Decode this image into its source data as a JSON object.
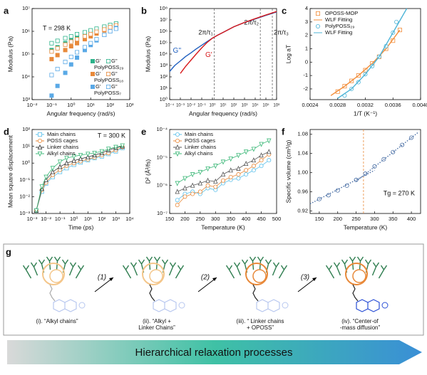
{
  "chart_data": [
    {
      "type": "scatter",
      "panel": "a",
      "xlabel": "Angular frequency (rad/s)",
      "ylabel": "Modulus (Pa)",
      "annotation": "T = 298 K",
      "annotation_corner": "upper left",
      "xlog": true,
      "ylog": true,
      "xlim": [
        0.01,
        1000
      ],
      "ylim": [
        1000,
        10000000
      ],
      "xticks": [
        {
          "value": 0.01,
          "label": "10⁻²"
        },
        {
          "value": 0.1,
          "label": "10⁻¹"
        },
        {
          "value": 1,
          "label": "10⁰"
        },
        {
          "value": 10,
          "label": "10¹"
        },
        {
          "value": 100,
          "label": "10²"
        },
        {
          "value": 1000,
          "label": "10³"
        }
      ],
      "yticks": [
        {
          "value": 1000,
          "label": "10³"
        },
        {
          "value": 10000,
          "label": "10⁴"
        },
        {
          "value": 100000,
          "label": "10⁵"
        },
        {
          "value": 1000000,
          "label": "10⁶"
        },
        {
          "value": 10000000,
          "label": "10⁷"
        }
      ],
      "legend": "lower right",
      "x": [
        0.1,
        0.2,
        0.5,
        1,
        2,
        5,
        10,
        20,
        50,
        100,
        200
      ],
      "groups": [
        {
          "name": "PolyPOSS₂₉",
          "series": [
            {
              "name": "G'",
              "color": "#2db38a",
              "marker": "square",
              "filled": true,
              "values": [
                150000,
                200000,
                300000,
                400000,
                550000,
                700000,
                900000,
                1100000,
                1400000,
                1700000,
                2000000
              ]
            },
            {
              "name": "G''",
              "color": "#2db38a",
              "marker": "square",
              "filled": false,
              "values": [
                300000,
                380000,
                500000,
                600000,
                750000,
                900000,
                1100000,
                1300000,
                1600000,
                1900000,
                2200000
              ]
            }
          ]
        },
        {
          "name": "PolyPOSS₁₈",
          "series": [
            {
              "name": "G'",
              "color": "#e8893a",
              "marker": "square",
              "filled": true,
              "values": [
                60000,
                90000,
                150000,
                220000,
                300000,
                450000,
                600000,
                800000,
                1100000,
                1400000,
                1700000
              ]
            },
            {
              "name": "G''",
              "color": "#e8893a",
              "marker": "square",
              "filled": false,
              "values": [
                130000,
                180000,
                260000,
                350000,
                450000,
                600000,
                750000,
                950000,
                1200000,
                1500000,
                1800000
              ]
            }
          ]
        },
        {
          "name": "PolyPOSS₇",
          "series": [
            {
              "name": "G'",
              "color": "#5aa9e6",
              "marker": "square",
              "filled": true,
              "values": [
                1500,
                4000,
                15000,
                35000,
                70000,
                150000,
                250000,
                400000,
                700000,
                1000000,
                1400000
              ]
            },
            {
              "name": "G''",
              "color": "#5aa9e6",
              "marker": "square",
              "filled": false,
              "values": [
                12000,
                22000,
                45000,
                75000,
                120000,
                200000,
                300000,
                450000,
                700000,
                1000000,
                1300000
              ]
            }
          ]
        }
      ]
    },
    {
      "type": "line",
      "panel": "b",
      "xlabel": "Angular frequency (rad/s)",
      "ylabel": "Modulus (Pa)",
      "xlog": true,
      "ylog": true,
      "xlim": [
        0.0001,
        1000000
      ],
      "ylim": [
        1,
        100000000
      ],
      "xticks": [
        {
          "value": 0.0001,
          "label": "10⁻⁴"
        },
        {
          "value": 0.001,
          "label": "10⁻³"
        },
        {
          "value": 0.01,
          "label": "10⁻²"
        },
        {
          "value": 0.1,
          "label": "10⁻¹"
        },
        {
          "value": 1,
          "label": "10⁰"
        },
        {
          "value": 10,
          "label": "10¹"
        },
        {
          "value": 100,
          "label": "10²"
        },
        {
          "value": 1000,
          "label": "10³"
        },
        {
          "value": 10000,
          "label": "10⁴"
        },
        {
          "value": 100000,
          "label": "10⁵"
        },
        {
          "value": 1000000,
          "label": "10⁶"
        }
      ],
      "yticks": [
        {
          "value": 1,
          "label": "10⁰"
        },
        {
          "value": 10,
          "label": "10¹"
        },
        {
          "value": 100,
          "label": "10²"
        },
        {
          "value": 1000,
          "label": "10³"
        },
        {
          "value": 10000,
          "label": "10⁴"
        },
        {
          "value": 100000,
          "label": "10⁵"
        },
        {
          "value": 1000000,
          "label": "10⁶"
        },
        {
          "value": 10000000,
          "label": "10⁷"
        },
        {
          "value": 100000000,
          "label": "10⁸"
        }
      ],
      "legend": "inline",
      "vlines": [
        {
          "value": 1.5,
          "label": "2π/τ₁"
        },
        {
          "value": 30000,
          "label": "2π/τ₂"
        },
        {
          "value": 400000,
          "label": "2π/τ₃"
        }
      ],
      "x": [
        0.0001,
        0.0003,
        0.001,
        0.003,
        0.01,
        0.03,
        0.1,
        0.3,
        1,
        3,
        10,
        100,
        1000,
        10000,
        100000,
        1000000
      ],
      "series": [
        {
          "name": "G''",
          "color": "#1f5fbf",
          "line": true,
          "values": [
            300,
            1000,
            2500,
            6000,
            13000,
            28000,
            60000,
            120000,
            250000,
            450000,
            800000,
            2500000,
            6000000,
            12000000,
            25000000,
            50000000
          ]
        },
        {
          "name": "G'",
          "color": "#d7191c",
          "line": true,
          "values": [
            null,
            null,
            200,
            800,
            3000,
            10000,
            35000,
            100000,
            250000,
            450000,
            800000,
            2500000,
            6000000,
            13000000,
            27000000,
            55000000
          ]
        }
      ]
    },
    {
      "type": "scatter",
      "panel": "c",
      "xlabel": "1/T (K⁻¹)",
      "ylabel": "Log aT",
      "xlim": [
        0.0024,
        0.004
      ],
      "ylim": [
        -2.8,
        4
      ],
      "xticks": [
        0.0024,
        0.0028,
        0.0032,
        0.0036,
        {
          "value": 0.004,
          "label": "0.0040"
        }
      ],
      "yticks": [
        -2,
        -1,
        0,
        1,
        2,
        3,
        4
      ],
      "legend": "upper left",
      "series": [
        {
          "name": "OPOSS-MOP",
          "color": "#f28c38",
          "marker": "square",
          "filled": false,
          "x": [
            0.0028,
            0.0029,
            0.003,
            0.0031,
            0.0032,
            0.0033,
            0.0034,
            0.0035,
            0.0036,
            0.0037
          ],
          "values": [
            -2.2,
            -1.8,
            -1.4,
            -1.0,
            -0.6,
            -0.1,
            0.4,
            1.0,
            1.6,
            2.4
          ]
        },
        {
          "name": "WLF Fitting",
          "color": "#f28c38",
          "line": true,
          "x": [
            0.0027,
            0.0029,
            0.0031,
            0.0033,
            0.0035,
            0.0037
          ],
          "values": [
            -2.5,
            -1.8,
            -1.0,
            -0.1,
            1.0,
            2.4
          ]
        },
        {
          "name": "PolyPOSS₂₉",
          "color": "#4db4d7",
          "marker": "circle",
          "filled": false,
          "x": [
            0.0029,
            0.003,
            0.0031,
            0.0032,
            0.0033,
            0.0034,
            0.0035,
            0.0036,
            0.00365
          ],
          "values": [
            -2.5,
            -2.0,
            -1.5,
            -0.9,
            -0.3,
            0.4,
            1.2,
            2.2,
            3.0
          ]
        },
        {
          "name": "WLF Fitting",
          "color": "#4db4d7",
          "line": true,
          "x": [
            0.0028,
            0.003,
            0.0032,
            0.0034,
            0.0036,
            0.0038
          ],
          "values": [
            -2.7,
            -2.0,
            -0.9,
            0.4,
            2.2,
            4.0
          ]
        }
      ]
    },
    {
      "type": "scatter",
      "panel": "d",
      "xlabel": "Time (ps)",
      "ylabel": "Mean square displacement",
      "annotation": "T = 300 K",
      "annotation_corner": "upper right",
      "xlog": true,
      "ylog": true,
      "xlim": [
        0.001,
        10000
      ],
      "ylim": [
        0.001,
        100
      ],
      "xticks": [
        {
          "value": 0.001,
          "label": "10⁻³"
        },
        {
          "value": 0.01,
          "label": "10⁻²"
        },
        {
          "value": 0.1,
          "label": "10⁻¹"
        },
        {
          "value": 1,
          "label": "10⁰"
        },
        {
          "value": 10,
          "label": "10¹"
        },
        {
          "value": 100,
          "label": "10²"
        },
        {
          "value": 1000,
          "label": "10³"
        },
        {
          "value": 10000,
          "label": "10⁴"
        }
      ],
      "yticks": [
        {
          "value": 0.001,
          "label": "10⁻³"
        },
        {
          "value": 0.01,
          "label": "10⁻²"
        },
        {
          "value": 0.1,
          "label": "10⁻¹"
        },
        {
          "value": 1,
          "label": "10⁰"
        },
        {
          "value": 10,
          "label": "10¹"
        },
        {
          "value": 100,
          "label": "10²"
        }
      ],
      "legend": "upper left",
      "x": [
        0.002,
        0.005,
        0.01,
        0.03,
        0.1,
        0.3,
        1,
        3,
        10,
        30,
        100,
        300,
        1000,
        3000
      ],
      "series": [
        {
          "name": "Main chains",
          "color": "#5bc0eb",
          "marker": "square",
          "filled": false,
          "line": true,
          "values": [
            0.0015,
            0.02,
            0.06,
            0.15,
            0.3,
            0.5,
            0.8,
            1.1,
            1.5,
            2,
            2.5,
            3.5,
            5,
            8
          ]
        },
        {
          "name": "POSS cages",
          "color": "#e8893a",
          "marker": "circle",
          "filled": false,
          "line": true,
          "values": [
            0.0015,
            0.025,
            0.07,
            0.2,
            0.4,
            0.7,
            1.0,
            1.3,
            1.7,
            2.2,
            3,
            4,
            6,
            9
          ]
        },
        {
          "name": "Linker chains",
          "color": "#333333",
          "marker": "triangle",
          "filled": false,
          "line": true,
          "values": [
            0.0015,
            0.03,
            0.1,
            0.3,
            0.6,
            1.0,
            1.4,
            1.8,
            2.3,
            3,
            4,
            6,
            8,
            10
          ]
        },
        {
          "name": "Alkyl chains",
          "color": "#3cb878",
          "marker": "triangle-down",
          "filled": false,
          "line": true,
          "values": [
            0.0015,
            0.04,
            0.15,
            0.5,
            1.2,
            2,
            2.5,
            3,
            3.5,
            4,
            5,
            7,
            9,
            11
          ]
        }
      ]
    },
    {
      "type": "line",
      "panel": "e",
      "xlabel": "Temperature (K)",
      "ylabel": "D² (Å²/fs)",
      "ylog": true,
      "xlim": [
        150,
        500
      ],
      "ylim": [
        1e-07,
        0.0001
      ],
      "xticks": [
        150,
        200,
        250,
        300,
        350,
        400,
        450,
        500
      ],
      "yticks": [
        {
          "value": 1e-07,
          "label": "10⁻⁷"
        },
        {
          "value": 1e-06,
          "label": "10⁻⁶"
        },
        {
          "value": 1e-05,
          "label": "10⁻⁵"
        },
        {
          "value": 0.0001,
          "label": "10⁻⁴"
        }
      ],
      "legend": "upper left",
      "x": [
        175,
        200,
        225,
        250,
        275,
        300,
        325,
        350,
        375,
        400,
        425,
        450,
        475
      ],
      "series": [
        {
          "name": "Main chains",
          "color": "#5bc0eb",
          "marker": "circle",
          "filled": false,
          "line": true,
          "values": [
            3e-07,
            5e-07,
            6e-07,
            5e-07,
            8e-07,
            7e-07,
            1.2e-06,
            1.6e-06,
            1.8e-06,
            2.5e-06,
            3.5e-06,
            5e-06,
            8e-06
          ]
        },
        {
          "name": "POSS cages",
          "color": "#e8893a",
          "marker": "circle",
          "filled": false,
          "line": true,
          "values": [
            2e-07,
            4e-07,
            5e-07,
            6e-07,
            1e-06,
            9e-07,
            1.5e-06,
            2e-06,
            2.5e-06,
            3.5e-06,
            5e-06,
            8e-06,
            1.3e-05
          ]
        },
        {
          "name": "Linker chains",
          "color": "#555555",
          "marker": "triangle",
          "filled": false,
          "line": true,
          "values": [
            6e-07,
            8e-07,
            1e-06,
            1.2e-06,
            1.5e-06,
            1.4e-06,
            2.5e-06,
            3.5e-06,
            4e-06,
            6e-06,
            8e-06,
            1.2e-05,
            1.6e-05
          ]
        },
        {
          "name": "Alkyl chains",
          "color": "#3cb878",
          "marker": "triangle-down",
          "filled": false,
          "line": true,
          "values": [
            1.2e-06,
            1.8e-06,
            2.5e-06,
            3e-06,
            4e-06,
            5e-06,
            7e-06,
            9e-06,
            1.2e-05,
            1.6e-05,
            2e-05,
            3e-05,
            4e-05
          ]
        }
      ]
    },
    {
      "type": "scatter",
      "panel": "f",
      "xlabel": "Temperature (K)",
      "ylabel": "Specific volume (cm³/g)",
      "annotation": "Tg = 270 K",
      "annotation_corner": "lower right",
      "xlim": [
        125,
        425
      ],
      "ylim": [
        0.915,
        1.09
      ],
      "xticks": [
        150,
        200,
        250,
        300,
        350,
        400
      ],
      "yticks": [
        0.92,
        0.96,
        {
          "value": 1,
          "label": "1.00"
        },
        1.04,
        1.08
      ],
      "vlines": [
        {
          "value": 270
        }
      ],
      "series": [
        {
          "color": "#4a6fa5",
          "marker": "circle",
          "filled": false,
          "x": [
            150,
            175,
            200,
            225,
            250,
            275,
            300,
            325,
            350,
            375,
            400
          ],
          "values": [
            0.945,
            0.953,
            0.963,
            0.973,
            0.985,
            0.998,
            1.013,
            1.028,
            1.043,
            1.058,
            1.073
          ]
        },
        {
          "color": "#4a6fa5",
          "line": true,
          "dash": "1.5,2",
          "x": [
            125,
            300
          ],
          "values": [
            0.935,
            1.005
          ]
        },
        {
          "color": "#4a6fa5",
          "line": true,
          "dash": "1.5,2",
          "x": [
            250,
            420
          ],
          "values": [
            0.982,
            1.085
          ]
        }
      ]
    }
  ],
  "diagram": {
    "panel": "g",
    "steps": [
      "(1)",
      "(2)",
      "(3)"
    ],
    "states": [
      [
        "(i). “Alkyl chains”"
      ],
      [
        "(ii). “Alkyl +",
        "Linker Chains”"
      ],
      [
        "(iii). “ Linker chains",
        "+ OPOSS”"
      ],
      [
        "(iv). “Center-of",
        "-mass diffusion”"
      ]
    ],
    "banner": "Hierarchical relaxation processes"
  }
}
